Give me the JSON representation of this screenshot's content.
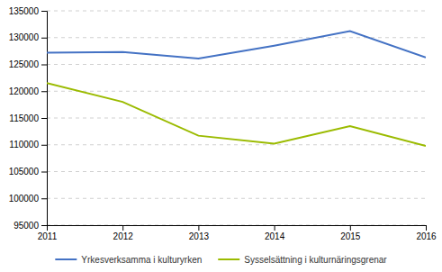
{
  "chart_data": {
    "type": "line",
    "x": [
      2011,
      2012,
      2013,
      2014,
      2015,
      2016
    ],
    "series": [
      {
        "name": "Yrkesverksamma i kulturyrken",
        "color": "#4472C4",
        "values": [
          127200,
          127300,
          126100,
          128500,
          131200,
          126300
        ]
      },
      {
        "name": "Sysselsättning i kulturnäringsgrenar",
        "color": "#9BBB00",
        "values": [
          121500,
          118000,
          111700,
          110200,
          113500,
          109800
        ]
      }
    ],
    "xlim": [
      2011,
      2016
    ],
    "xticks": [
      2011,
      2012,
      2013,
      2014,
      2015,
      2016
    ],
    "ylim": [
      95000,
      135000
    ],
    "yticks": [
      95000,
      100000,
      105000,
      110000,
      115000,
      120000,
      125000,
      130000,
      135000
    ],
    "grid": true,
    "legend": "bottom"
  }
}
